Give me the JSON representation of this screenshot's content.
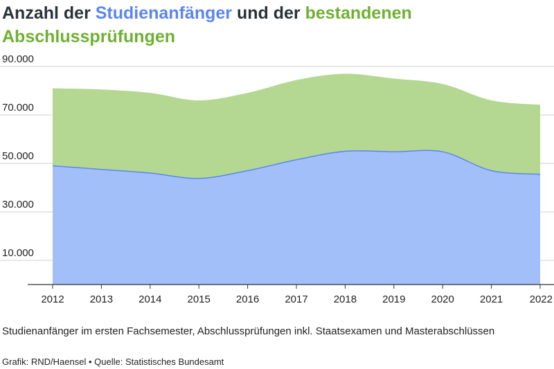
{
  "title": {
    "part1": "Anzahl der ",
    "part2": "Studienanfänger",
    "part3": " und der ",
    "part4": "bestandenen Abschlussprüfungen"
  },
  "note": "Studienanfänger im ersten Fachsemester, Abschlussprüfungen inkl. Staatsexamen und Masterabschlüssen",
  "credit": "Grafik: RND/Haensel • Quelle: Statistisches Bundesamt",
  "colors": {
    "studienanfaenger": "#a3bffa",
    "studienanfaenger_line": "#5b86f0",
    "abschluesse": "#b4d792",
    "grid": "#cfcfcf",
    "axis": "#333333"
  },
  "chart_data": {
    "type": "area",
    "stacked": true,
    "x": [
      2012,
      2013,
      2014,
      2015,
      2016,
      2017,
      2018,
      2019,
      2020,
      2021,
      2022
    ],
    "yticks": [
      "10.000",
      "30.000",
      "50.000",
      "70.000",
      "90.000"
    ],
    "ylim": [
      0,
      95000
    ],
    "grid": true,
    "series": [
      {
        "name": "Studienanfänger",
        "values": [
          49000,
          47500,
          46000,
          43800,
          47000,
          51500,
          55000,
          54800,
          54800,
          47000,
          45500
        ]
      },
      {
        "name": "bestandenen Abschlussprüfungen",
        "values": [
          32000,
          33000,
          33100,
          32200,
          32100,
          32900,
          32000,
          30200,
          28000,
          29000,
          28700
        ]
      }
    ]
  }
}
